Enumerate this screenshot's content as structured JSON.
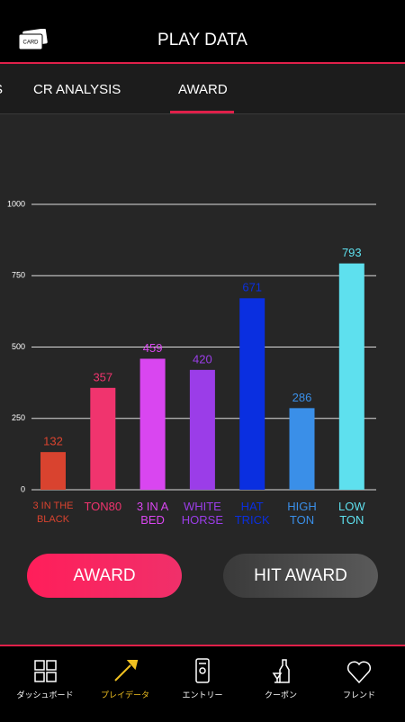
{
  "header": {
    "title": "PLAY DATA",
    "icon_label": "CARD"
  },
  "tabs": [
    "S",
    "CR ANALYSIS",
    "AWARD"
  ],
  "chart_data": {
    "type": "bar",
    "categories": [
      "3 IN THE\nBLACK",
      "TON80",
      "3 IN A\nBED",
      "WHITE\nHORSE",
      "HAT\nTRICK",
      "HIGH\nTON",
      "LOW\nTON"
    ],
    "values": [
      132,
      357,
      459,
      420,
      671,
      286,
      793
    ],
    "colors": [
      "#d9432f",
      "#f0346e",
      "#d946f0",
      "#9b3de8",
      "#0a2fe0",
      "#3a8fe8",
      "#5ee0ee"
    ],
    "ylim": [
      0,
      1000
    ],
    "yticks": [
      0,
      250,
      500,
      750,
      1000
    ],
    "grid": true
  },
  "buttons": [
    "AWARD",
    "HIT AWARD"
  ],
  "nav": [
    "ダッシュボード",
    "プレイデータ",
    "エントリー",
    "クーポン",
    "フレンド"
  ]
}
